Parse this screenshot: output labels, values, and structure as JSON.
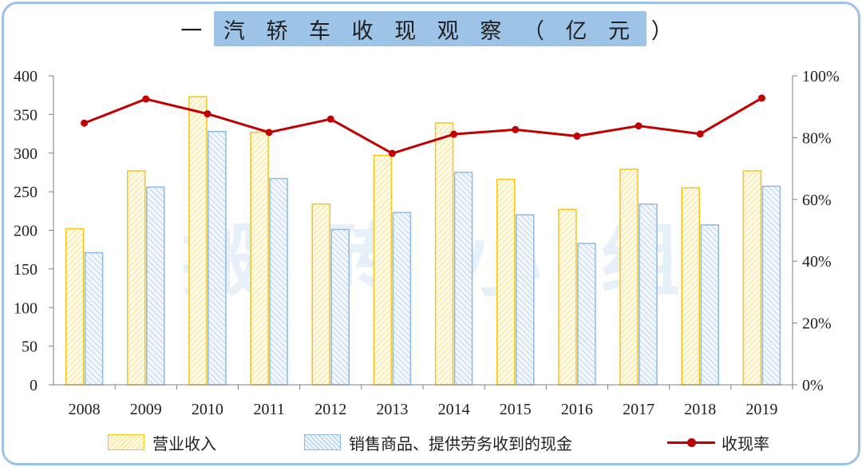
{
  "title": "一 汽 轿 车 收 现 观 察 （ 亿 元 ）",
  "watermark": "搬 砖 小 组",
  "colors": {
    "revenue_border": "#f5c518",
    "revenue_hatch": "#fbe69a",
    "cash_border": "#8fb9e0",
    "cash_hatch": "#b9d4ee",
    "ratio_line": "#c00000",
    "frame": "#9cc3e6",
    "title_bg": "#9dc3e6"
  },
  "legend": {
    "revenue": "营业收入",
    "cash": "销售商品、提供劳务收到的现金",
    "ratio": "收现率"
  },
  "chart_data": {
    "type": "bar",
    "categories": [
      "2008",
      "2009",
      "2010",
      "2011",
      "2012",
      "2013",
      "2014",
      "2015",
      "2016",
      "2017",
      "2018",
      "2019"
    ],
    "series": [
      {
        "name": "营业收入",
        "type": "bar",
        "axis": "left",
        "values": [
          202,
          277,
          373,
          327,
          234,
          297,
          339,
          266,
          227,
          279,
          255,
          277
        ]
      },
      {
        "name": "销售商品、提供劳务收到的现金",
        "type": "bar",
        "axis": "left",
        "values": [
          171,
          256,
          328,
          267,
          201,
          223,
          275,
          220,
          183,
          234,
          207,
          257
        ]
      },
      {
        "name": "收现率",
        "type": "line",
        "axis": "right",
        "values": [
          0.847,
          0.925,
          0.877,
          0.817,
          0.86,
          0.749,
          0.811,
          0.826,
          0.805,
          0.838,
          0.812,
          0.928
        ]
      }
    ],
    "y_left": {
      "min": 0,
      "max": 400,
      "ticks": [
        "0",
        "50",
        "100",
        "150",
        "200",
        "250",
        "300",
        "350",
        "400"
      ]
    },
    "y_right": {
      "min": 0,
      "max": 1,
      "ticks": [
        "0%",
        "20%",
        "40%",
        "60%",
        "80%",
        "100%"
      ]
    },
    "grid": false,
    "legend_position": "bottom"
  }
}
